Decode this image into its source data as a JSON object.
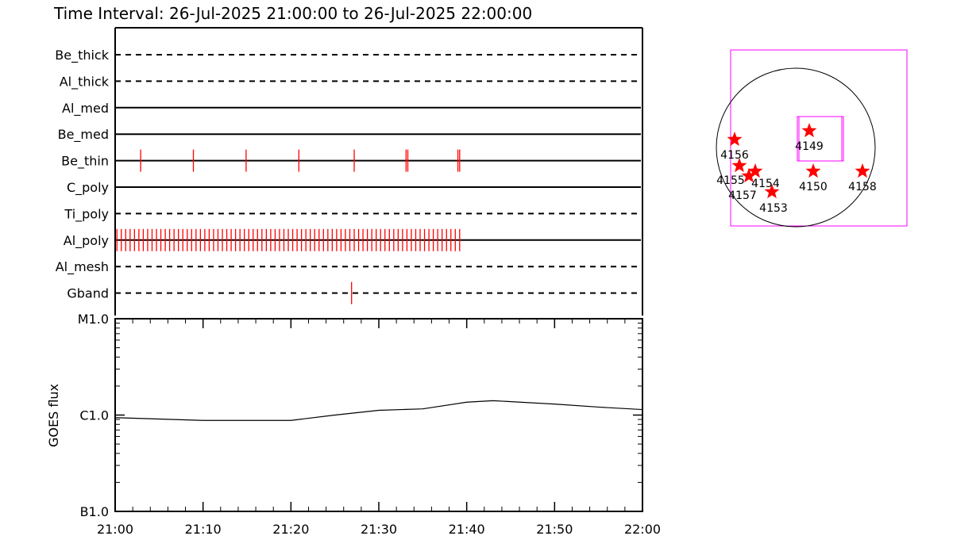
{
  "title": "Time Interval: 26-Jul-2025 21:00:00 to 26-Jul-2025 22:00:00",
  "chart_data": [
    {
      "type": "timeline",
      "x_range": [
        "21:00",
        "22:00"
      ],
      "lanes": [
        {
          "name": "Be_thick",
          "style": "dashed",
          "events": []
        },
        {
          "name": "Al_thick",
          "style": "dashed",
          "events": []
        },
        {
          "name": "Al_med",
          "style": "solid",
          "events": []
        },
        {
          "name": "Be_med",
          "style": "solid",
          "events": []
        },
        {
          "name": "Be_thin",
          "style": "solid",
          "events": [
            2.9,
            8.9,
            14.9,
            20.9,
            27.2,
            33.1,
            33.3,
            39.0,
            39.2
          ]
        },
        {
          "name": "C_poly",
          "style": "solid",
          "events": []
        },
        {
          "name": "Ti_poly",
          "style": "dashed",
          "events": []
        },
        {
          "name": "Al_poly",
          "style": "solid",
          "events": "every ~0.5 min from 21:00 to 21:39"
        },
        {
          "name": "Al_mesh",
          "style": "dashed",
          "events": []
        },
        {
          "name": "Gband",
          "style": "dashed",
          "events": [
            26.9
          ]
        }
      ],
      "event_color": "#ff0000"
    },
    {
      "type": "line",
      "ylabel": "GOES flux",
      "yscale": "log",
      "ylim": [
        1e-07,
        1e-05
      ],
      "yticks": [
        "B1.0",
        "C1.0",
        "M1.0"
      ],
      "xticks": [
        "21:00",
        "21:10",
        "21:20",
        "21:30",
        "21:40",
        "21:50",
        "22:00"
      ],
      "x": [
        "21:00",
        "21:05",
        "21:10",
        "21:15",
        "21:20",
        "21:25",
        "21:30",
        "21:35",
        "21:40",
        "21:43",
        "21:50",
        "21:55",
        "22:00"
      ],
      "y": [
        9.4e-07,
        9.1e-07,
        8.8e-07,
        8.8e-07,
        8.8e-07,
        1e-06,
        1.12e-06,
        1.16e-06,
        1.36e-06,
        1.41e-06,
        1.3e-06,
        1.21e-06,
        1.14e-06
      ]
    },
    {
      "type": "scatter",
      "subject": "solar disk active regions",
      "regions": [
        {
          "label": "4149",
          "x": 17,
          "y": 21
        },
        {
          "label": "4156",
          "x": -77,
          "y": 10
        },
        {
          "label": "4155",
          "x": -71,
          "y": -23
        },
        {
          "label": "4154",
          "x": -51,
          "y": -30
        },
        {
          "label": "4157",
          "x": -59,
          "y": -36
        },
        {
          "label": "4153",
          "x": -30,
          "y": -56
        },
        {
          "label": "4150",
          "x": 22,
          "y": -30
        },
        {
          "label": "4158",
          "x": 84,
          "y": -30
        }
      ],
      "marker_color": "#ff0000",
      "box_color": "#ff00ff"
    }
  ]
}
